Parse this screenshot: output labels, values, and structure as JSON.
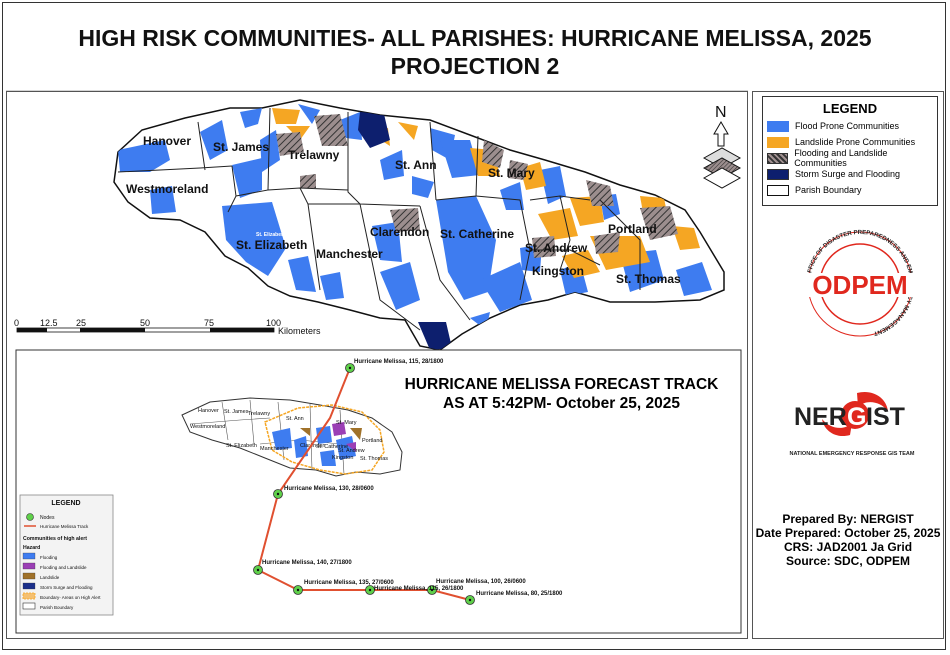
{
  "title": {
    "line1": "HIGH RISK COMMUNITIES- ALL PARISHES: HURRICANE MELISSA, 2025",
    "line2": "PROJECTION 2"
  },
  "main_map": {
    "parishes": [
      "Hanover",
      "St. James",
      "Trelawny",
      "St. Ann",
      "St. Mary",
      "Westmoreland",
      "St. Elizabeth",
      "Manchester",
      "Clarendon",
      "St. Catherine",
      "St. Andrew",
      "Portland",
      "Kingston",
      "St. Thomas"
    ],
    "small_label": "St. Elizabeth",
    "scale_bar": {
      "ticks": [
        "0",
        "12.5",
        "25",
        "50",
        "75",
        "100"
      ],
      "unit": "Kilometers"
    },
    "north_letter": "N"
  },
  "legend": {
    "title": "LEGEND",
    "items": [
      {
        "label": "Flood Prone Communities",
        "color": "#3e7cf0"
      },
      {
        "label": "Landslide Prone Communities",
        "color": "#f5a623"
      },
      {
        "label": "Flooding and Landslide Communities",
        "color": "#6d5f5f"
      },
      {
        "label": "Storm Surge and Flooding",
        "color": "#0d1f6e"
      },
      {
        "label": "Parish Boundary",
        "color": "#ffffff"
      }
    ]
  },
  "inset": {
    "title_line1": "HURRICANE MELISSA FORECAST TRACK",
    "title_line2": "AS AT 5:42PM- October 25, 2025",
    "parishes": [
      "Hanover",
      "St. James",
      "Trelawny",
      "St. Ann",
      "St. Mary",
      "Westmoreland",
      "Portland",
      "St. Elizabeth",
      "Manchester",
      "Clarendon",
      "St. Catherine",
      "St. Andrew",
      "Kingston",
      "St. Thomas"
    ],
    "nodes": [
      {
        "label": "Hurricane Melissa, 115, 28/1800"
      },
      {
        "label": "Hurricane Melissa, 130, 28/0600"
      },
      {
        "label": "Hurricane Melissa, 140, 27/1800"
      },
      {
        "label": "Hurricane Melissa, 135, 27/0600"
      },
      {
        "label": "Hurricane Melissa, 115, 26/1800"
      },
      {
        "label": "Hurricane Melissa, 100, 26/0600"
      },
      {
        "label": "Hurricane Melissa, 80, 25/1800"
      }
    ],
    "legend": {
      "title": "LEGEND",
      "nodes_label": "Nodes",
      "track_label": "Hurricane Melissa Track",
      "communities_heading": "Communities of high alert",
      "hazard_heading": "Hazard",
      "items": [
        {
          "label": "Flooding",
          "color": "#3e7cf0"
        },
        {
          "label": "Flooding and Landslide",
          "color": "#9b3fb5"
        },
        {
          "label": "Landslide",
          "color": "#a0722a"
        },
        {
          "label": "Storm Surge and Flooding",
          "color": "#1b2f8a"
        },
        {
          "label": "Boundary- Areas on High Alert",
          "color": "#f5c070"
        },
        {
          "label": "Parish Boundary",
          "color": "#ffffff"
        }
      ]
    }
  },
  "logos": {
    "odpem_ring": "OFFICE OF DISASTER PREPAREDNESS AND EMERGENCY MANAGEMENT",
    "odpem": "ODPEM",
    "nergist_ner": "NER",
    "nergist_g": "G",
    "nergist_ist": "IST",
    "nergist_sub": "NATIONAL EMERGENCY RESPONSE GIS TEAM"
  },
  "prepared": {
    "by": "Prepared By: NERGIST",
    "date": "Date Prepared: October 25, 2025",
    "crs": "CRS: JAD2001 Ja Grid",
    "source": "Source: SDC, ODPEM"
  },
  "colors": {
    "flood": "#3e7cf0",
    "landslide": "#f5a623",
    "both": "#6d5f5f",
    "surge": "#0d1f6e",
    "track": "#e05030",
    "node": "#5fd04a",
    "odpem_red": "#e0281e"
  }
}
